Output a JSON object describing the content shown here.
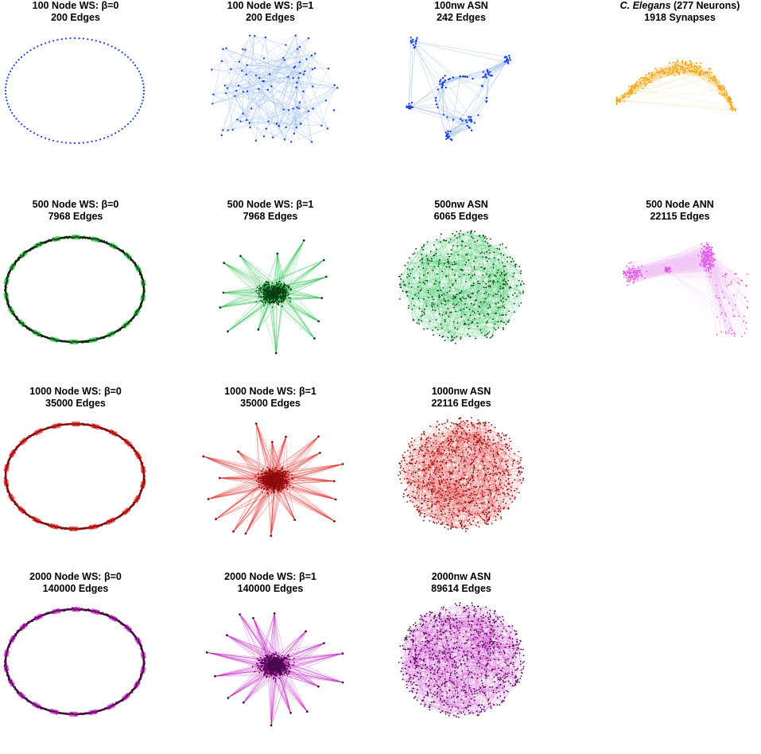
{
  "figure": {
    "rows": [
      [
        {
          "id": "ws100-b0",
          "line1": "100 Node WS: β=0",
          "line2": "200 Edges",
          "kind": "ring",
          "color": "#1a3fe0",
          "edge_color": "#1a3fe0",
          "nodes": 100,
          "thick": 0
        },
        {
          "id": "ws100-b1",
          "line1": "100 Node WS: β=1",
          "line2": "200 Edges",
          "kind": "random",
          "color": "#1a3fe0",
          "edge_color": "#a9c4ee",
          "nodes": 100
        },
        {
          "id": "asn100",
          "line1": "100nw ASN",
          "line2": "242 Edges",
          "kind": "asn-small",
          "color": "#1a3fe0",
          "edge_color": "#a9c4ee",
          "nodes": 100
        },
        {
          "id": "celegans",
          "line1_italic": "C. Elegans",
          "line1_rest": " (277 Neurons)",
          "line2": "1918 Synapses",
          "kind": "celegans",
          "color": "#f5a000",
          "edge_color": "#f7cf7a",
          "nodes": 277
        }
      ],
      [
        {
          "id": "ws500-b0",
          "line1": "500 Node WS: β=0",
          "line2": "7968 Edges",
          "kind": "ring",
          "color": "#0a2a0a",
          "edge_color": "#1fbf3a",
          "nodes": 500,
          "thick": 1
        },
        {
          "id": "ws500-b1",
          "line1": "500 Node WS: β=1",
          "line2": "7968 Edges",
          "kind": "star",
          "color": "#0a3a10",
          "edge_color": "#22c04a",
          "nodes": 500,
          "spikes": 14
        },
        {
          "id": "asn500",
          "line1": "500nw ASN",
          "line2": "6065 Edges",
          "kind": "asn",
          "color": "#0a3a10",
          "edge_color": "#22c04a",
          "nodes": 500
        },
        {
          "id": "ann500",
          "line1": "500 Node ANN",
          "line2": "22115 Edges",
          "kind": "ann",
          "color": "#e05ae6",
          "edge_color": "#f4c8f6",
          "nodes": 500
        }
      ],
      [
        {
          "id": "ws1000-b0",
          "line1": "1000 Node WS: β=0",
          "line2": "35000 Edges",
          "kind": "ring",
          "color": "#8a0c0c",
          "edge_color": "#e42020",
          "nodes": 1000,
          "thick": 1
        },
        {
          "id": "ws1000-b1",
          "line1": "1000 Node WS: β=1",
          "line2": "35000 Edges",
          "kind": "star",
          "color": "#8a0c0c",
          "edge_color": "#e42020",
          "nodes": 1000,
          "spikes": 18
        },
        {
          "id": "asn1000",
          "line1": "1000nw ASN",
          "line2": "22116 Edges",
          "kind": "asn",
          "color": "#8a0c0c",
          "edge_color": "#e42020",
          "nodes": 1000
        }
      ],
      [
        {
          "id": "ws2000-b0",
          "line1": "2000 Node WS: β=0",
          "line2": "140000 Edges",
          "kind": "ring",
          "color": "#4a0a4a",
          "edge_color": "#c418c4",
          "nodes": 2000,
          "thick": 1
        },
        {
          "id": "ws2000-b1",
          "line1": "2000 Node WS: β=1",
          "line2": "140000 Edges",
          "kind": "star",
          "color": "#4a0a4a",
          "edge_color": "#c418c4",
          "nodes": 2000,
          "spikes": 16
        },
        {
          "id": "asn2000",
          "line1": "2000nw ASN",
          "line2": "89614 Edges",
          "kind": "asn",
          "color": "#4a0a4a",
          "edge_color": "#c418c4",
          "nodes": 2000
        }
      ]
    ]
  }
}
